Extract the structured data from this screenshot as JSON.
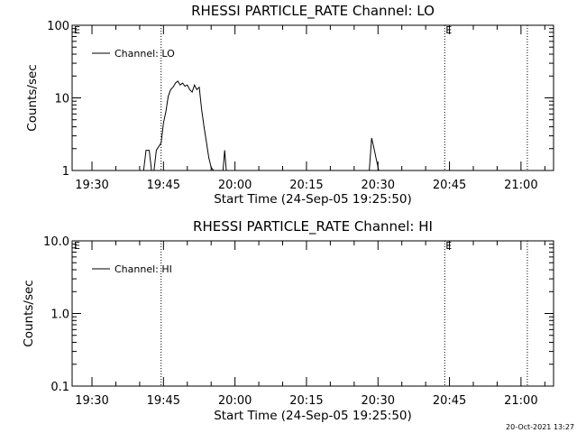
{
  "chart_data": [
    {
      "type": "line",
      "title": "RHESSI PARTICLE_RATE Channel: LO",
      "ylabel": "Counts/sec",
      "xlabel": "Start Time (24-Sep-05 19:25:50)",
      "yscale": "log",
      "ylim": [
        1,
        100
      ],
      "yticks": [
        "1",
        "10",
        "100"
      ],
      "xlim": [
        "19:25:50",
        "21:06:50"
      ],
      "xticks": [
        "19:30",
        "19:45",
        "20:00",
        "20:15",
        "20:30",
        "20:45",
        "21:00"
      ],
      "legend": {
        "placement": "top-left",
        "entries": [
          "Channel: LO"
        ]
      },
      "vertical_markers": [
        {
          "time": "19:44:30",
          "label": ""
        },
        {
          "time": "20:44:00",
          "label": "E"
        },
        {
          "time": "21:01:20",
          "label": ""
        }
      ],
      "corner_marker": "E",
      "series": [
        {
          "name": "Channel: LO",
          "segments": [
            {
              "x": [
                "19:40:50",
                "19:41:20",
                "19:42:00",
                "19:42:30"
              ],
              "y": [
                1,
                1.9,
                1.9,
                1
              ]
            },
            {
              "x": [
                "19:43:00",
                "19:43:30",
                "19:44:30",
                "19:45:00",
                "19:45:30",
                "19:46:00",
                "19:46:30",
                "19:47:00",
                "19:47:30",
                "19:48:00",
                "19:48:30",
                "19:49:00",
                "19:49:30",
                "19:50:00",
                "19:50:30",
                "19:51:00",
                "19:51:30",
                "19:52:00",
                "19:52:30",
                "19:53:00",
                "19:53:30",
                "19:54:00",
                "19:54:30",
                "19:55:00",
                "19:55:30"
              ],
              "y": [
                1,
                1.9,
                2.4,
                4.5,
                6.5,
                10.5,
                13,
                14,
                16,
                17,
                15,
                16,
                14.5,
                15,
                13,
                12,
                15,
                13,
                14,
                7,
                4,
                2.5,
                1.5,
                1.1,
                1
              ]
            },
            {
              "x": [
                "19:57:30",
                "19:57:50",
                "19:58:10"
              ],
              "y": [
                1,
                1.9,
                1
              ]
            },
            {
              "x": [
                "20:28:10",
                "20:28:40",
                "20:29:10",
                "20:29:40",
                "20:30:10"
              ],
              "y": [
                1,
                2.8,
                2.0,
                1.4,
                1
              ]
            }
          ]
        }
      ]
    },
    {
      "type": "line",
      "title": "RHESSI PARTICLE_RATE Channel: HI",
      "ylabel": "Counts/sec",
      "xlabel": "Start Time (24-Sep-05 19:25:50)",
      "yscale": "log",
      "ylim": [
        0.1,
        10
      ],
      "yticks": [
        "0.1",
        "1.0",
        "10.0"
      ],
      "xlim": [
        "19:25:50",
        "21:06:50"
      ],
      "xticks": [
        "19:30",
        "19:45",
        "20:00",
        "20:15",
        "20:30",
        "20:45",
        "21:00"
      ],
      "legend": {
        "placement": "top-left",
        "entries": [
          "Channel: HI"
        ]
      },
      "vertical_markers": [
        {
          "time": "19:44:30",
          "label": ""
        },
        {
          "time": "20:44:00",
          "label": "E"
        },
        {
          "time": "21:01:20",
          "label": ""
        }
      ],
      "corner_marker": "E",
      "series": [
        {
          "name": "Channel: HI",
          "segments": []
        }
      ]
    }
  ],
  "footer": {
    "timestamp": "20-Oct-2021 13:27"
  },
  "colors": {
    "background": "#ffffff",
    "foreground": "#000000"
  }
}
